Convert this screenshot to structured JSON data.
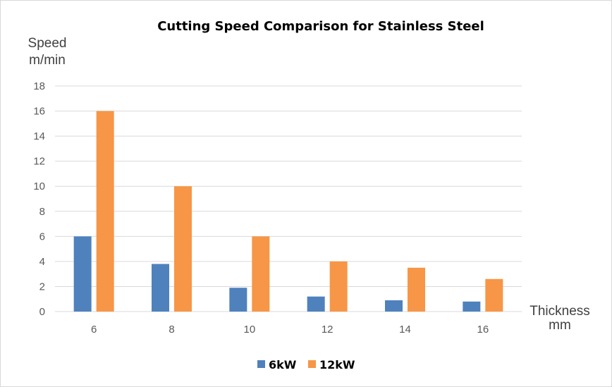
{
  "chart_data": {
    "type": "bar",
    "title": "Cutting Speed Comparison for Stainless Steel",
    "ylabel_line1": "Speed",
    "ylabel_line2": "m/min",
    "xlabel_line1": "Thickness",
    "xlabel_line2": "mm",
    "categories": [
      "6",
      "8",
      "10",
      "12",
      "14",
      "16"
    ],
    "ylim": [
      0,
      18
    ],
    "yticks": [
      0,
      2,
      4,
      6,
      8,
      10,
      12,
      14,
      16,
      18
    ],
    "grid": true,
    "legend_position": "bottom",
    "series": [
      {
        "name": "6kW",
        "color": "#4f81bd",
        "values": [
          6,
          3.8,
          1.9,
          1.2,
          0.9,
          0.8
        ]
      },
      {
        "name": "12kW",
        "color": "#f79646",
        "values": [
          16,
          10,
          6,
          4,
          3.5,
          2.6
        ]
      }
    ]
  }
}
